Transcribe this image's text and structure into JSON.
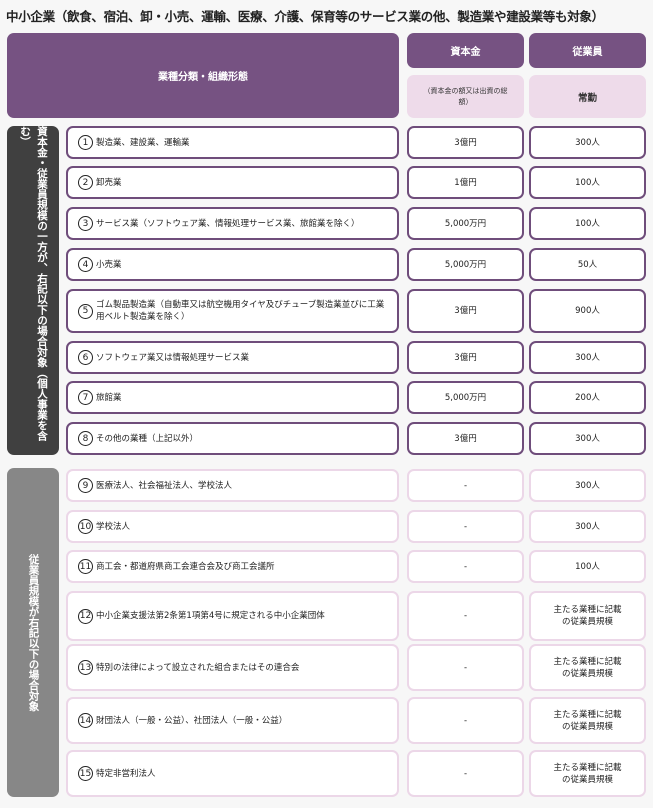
{
  "title": "中小企業（飲食、宿泊、卸・小売、運輸、医療、介護、保育等のサービス業の他、製造業や建設業等も対象）",
  "header": {
    "category": "業種分類・組織形態",
    "capital": "資本金",
    "employees": "従業員",
    "capital_note": "（資本金の額又は出資の総額）",
    "employees_note": "常勤"
  },
  "group1": {
    "label": "資本金・従業員規模の一方が、右記以下の場合対象（個人事業を含む）",
    "rows": [
      {
        "num": "1",
        "name": "製造業、建設業、運輸業",
        "capital": "3億円",
        "employees": "300人"
      },
      {
        "num": "2",
        "name": "卸売業",
        "capital": "1億円",
        "employees": "100人"
      },
      {
        "num": "3",
        "name": "サービス業（ソフトウェア業、情報処理サービス業、旅館業を除く）",
        "capital": "5,000万円",
        "employees": "100人"
      },
      {
        "num": "4",
        "name": "小売業",
        "capital": "5,000万円",
        "employees": "50人"
      },
      {
        "num": "5",
        "name": "ゴム製品製造業（自動車又は航空機用タイヤ及びチューブ製造業並びに工業用ベルト製造業を除く）",
        "capital": "3億円",
        "employees": "900人"
      },
      {
        "num": "6",
        "name": "ソフトウェア業又は情報処理サービス業",
        "capital": "3億円",
        "employees": "300人"
      },
      {
        "num": "7",
        "name": "旅館業",
        "capital": "5,000万円",
        "employees": "200人"
      },
      {
        "num": "8",
        "name": "その他の業種（上記以外）",
        "capital": "3億円",
        "employees": "300人"
      }
    ]
  },
  "group2": {
    "label": "従業員規模が右記以下の場合対象",
    "rows": [
      {
        "num": "9",
        "name": "医療法人、社会福祉法人、学校法人",
        "capital": "-",
        "employees": "300人"
      },
      {
        "num": "10",
        "name": "学校法人",
        "capital": "-",
        "employees": "300人"
      },
      {
        "num": "11",
        "name": "商工会・都道府県商工会連合会及び商工会議所",
        "capital": "-",
        "employees": "100人"
      },
      {
        "num": "12",
        "name": "中小企業支援法第2条第1項第4号に規定される中小企業団体",
        "capital": "-",
        "employees": "主たる業種に記載の従業員規模"
      },
      {
        "num": "13",
        "name": "特別の法律によって設立された組合またはその連合会",
        "capital": "-",
        "employees": "主たる業種に記載の従業員規模"
      },
      {
        "num": "14",
        "name": "財団法人（一般・公益）、社団法人（一般・公益）",
        "capital": "-",
        "employees": "主たる業種に記載の従業員規模"
      },
      {
        "num": "15",
        "name": "特定非営利法人",
        "capital": "-",
        "employees": "主たる業種に記載の従業員規模"
      }
    ]
  },
  "colors": {
    "header": "#765282",
    "subheader": "#eedbea",
    "group1": "#404040",
    "group2": "#878787",
    "group1_border": "#6f4d7b",
    "group2_border": "#ecd7e8"
  }
}
